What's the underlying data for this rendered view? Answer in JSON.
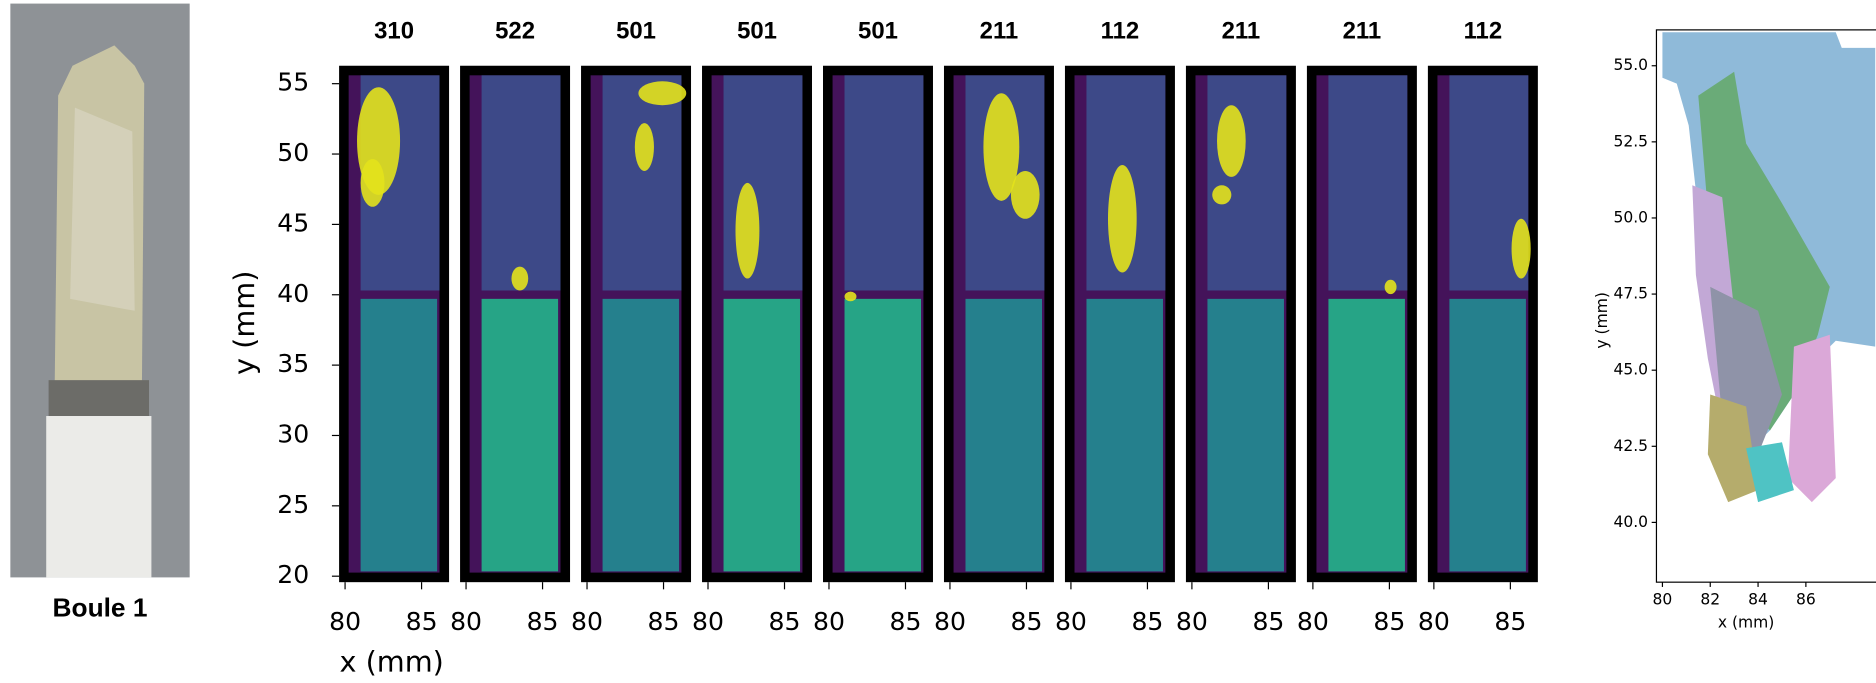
{
  "photo": {
    "caption": "Boule 1"
  },
  "panels": {
    "titles": [
      "310",
      "522",
      "501",
      "501",
      "501",
      "211",
      "112",
      "211",
      "211",
      "112"
    ],
    "y_label": "y (mm)",
    "yticks": [
      "20",
      "25",
      "30",
      "35",
      "40",
      "45",
      "50",
      "55"
    ],
    "x_label": "x (mm)",
    "xticks": [
      "80",
      "85"
    ]
  },
  "map": {
    "y_label": "y (mm)",
    "yticks": [
      "40.0",
      "42.5",
      "45.0",
      "47.5",
      "50.0",
      "52.5",
      "55.0"
    ],
    "x_label": "x (mm)",
    "xticks": [
      "80",
      "82",
      "84",
      "86"
    ]
  }
}
